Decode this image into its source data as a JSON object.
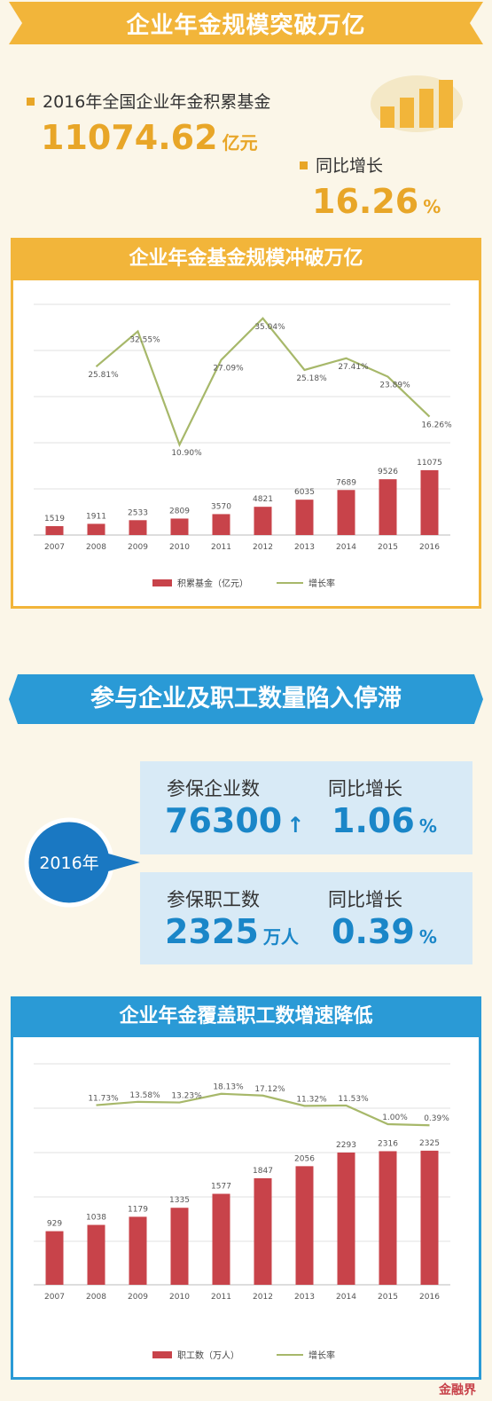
{
  "section1": {
    "title": "企业年金规模突破万亿",
    "fund_label": "2016年全国企业年金积累基金",
    "fund_value": "11074.62",
    "fund_unit": "亿元",
    "growth_label": "同比增长",
    "growth_value": "16.26",
    "growth_unit": "%"
  },
  "section2": {
    "title": "参与企业及职工数量陷入停滞",
    "year_badge": "2016年",
    "enterprise_label": "参保企业数",
    "enterprise_value": "76300",
    "enterprise_arrow": "↑",
    "enterprise_growth_label": "同比增长",
    "enterprise_growth_value": "1.06",
    "enterprise_growth_unit": "%",
    "worker_label": "参保职工数",
    "worker_value": "2325",
    "worker_unit": "万人",
    "worker_growth_label": "同比增长",
    "worker_growth_value": "0.39",
    "worker_growth_unit": "%"
  },
  "watermark": "金融界",
  "colors": {
    "orange": "#f2b53a",
    "blue": "#2a9ad6",
    "bar": "#c8434a",
    "line": "#a7b86a"
  },
  "chart_data": [
    {
      "type": "bar",
      "title": "企业年金基金规模冲破万亿",
      "categories": [
        "2007",
        "2008",
        "2009",
        "2010",
        "2011",
        "2012",
        "2013",
        "2014",
        "2015",
        "2016"
      ],
      "series": [
        {
          "name": "积累基金（亿元）",
          "type": "bar",
          "values": [
            1519,
            1911,
            2533,
            2809,
            3570,
            4821,
            6035,
            7689,
            9526,
            11075
          ],
          "labels": [
            "1519",
            "1911",
            "2533",
            "2809",
            "3570",
            "4821",
            "6035",
            "7689",
            "9526",
            "11075"
          ]
        },
        {
          "name": "增长率",
          "type": "line",
          "values": [
            null,
            25.81,
            32.55,
            10.9,
            27.09,
            35.04,
            25.18,
            27.41,
            23.89,
            16.26
          ],
          "labels": [
            "",
            "25.81%",
            "32.55%",
            "10.90%",
            "27.09%",
            "35.04%",
            "25.18%",
            "27.41%",
            "23.89%",
            "16.26%"
          ]
        }
      ],
      "grid": true,
      "legend": "bottom"
    },
    {
      "type": "bar",
      "title": "企业年金覆盖职工数增速降低",
      "categories": [
        "2007",
        "2008",
        "2009",
        "2010",
        "2011",
        "2012",
        "2013",
        "2014",
        "2015",
        "2016"
      ],
      "series": [
        {
          "name": "职工数（万人）",
          "type": "bar",
          "values": [
            929,
            1038,
            1179,
            1335,
            1577,
            1847,
            2056,
            2293,
            2316,
            2325
          ],
          "labels": [
            "929",
            "1038",
            "1179",
            "1335",
            "1577",
            "1847",
            "2056",
            "2293",
            "2316",
            "2325"
          ]
        },
        {
          "name": "增长率",
          "type": "line",
          "values": [
            null,
            11.73,
            13.58,
            13.23,
            18.13,
            17.12,
            11.32,
            11.53,
            1.0,
            0.39
          ],
          "labels": [
            "",
            "11.73%",
            "13.58%",
            "13.23%",
            "18.13%",
            "17.12%",
            "11.32%",
            "11.53%",
            "1.00%",
            "0.39%"
          ]
        }
      ],
      "grid": true,
      "legend": "bottom"
    }
  ]
}
